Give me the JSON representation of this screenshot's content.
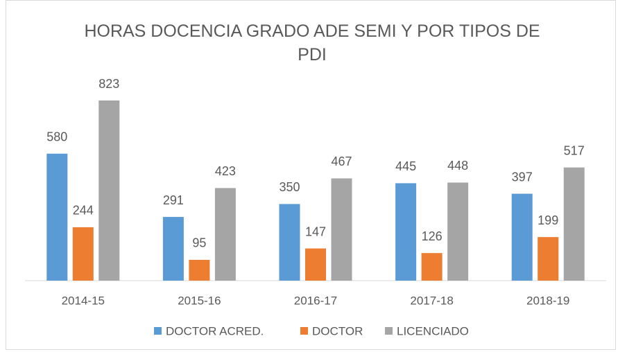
{
  "chart_data": {
    "type": "bar",
    "title": "HORAS DOCENCIA GRADO ADE SEMI Y POR TIPOS DE PDI",
    "categories": [
      "2014-15",
      "2015-16",
      "2016-17",
      "2017-18",
      "2018-19"
    ],
    "series": [
      {
        "name": "DOCTOR ACRED.",
        "color": "#5b9bd5",
        "values": [
          580,
          291,
          350,
          445,
          397
        ]
      },
      {
        "name": "DOCTOR",
        "color": "#ed7d31",
        "values": [
          244,
          95,
          147,
          126,
          199
        ]
      },
      {
        "name": "LICENCIADO",
        "color": "#a5a5a5",
        "values": [
          823,
          423,
          467,
          448,
          517
        ]
      }
    ],
    "legend": "bottom"
  }
}
